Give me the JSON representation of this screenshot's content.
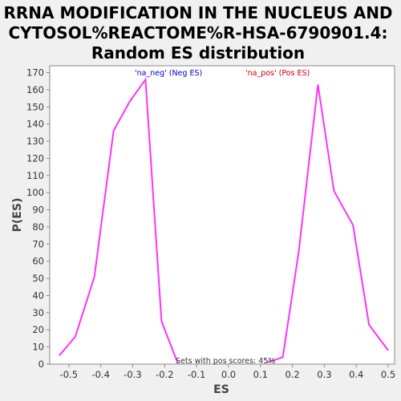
{
  "chart_data": {
    "type": "line",
    "title_lines": [
      "RRNA MODIFICATION IN THE NUCLEUS AND",
      "CYTOSOL%REACTOME%R-HSA-6790901.4:",
      "Random ES distribution"
    ],
    "xlabel": "ES",
    "ylabel": "P(ES)",
    "xlim": [
      -0.56,
      0.52
    ],
    "ylim": [
      0,
      174
    ],
    "xticks": [
      -0.5,
      -0.4,
      -0.3,
      -0.2,
      -0.1,
      0.0,
      0.1,
      0.2,
      0.3,
      0.4,
      0.5
    ],
    "xtick_labels": [
      "-0.5",
      "-0.4",
      "-0.3",
      "-0.2",
      "-0.1",
      "0.0",
      "0.1",
      "0.2",
      "0.3",
      "0.4",
      "0.5"
    ],
    "yticks": [
      0,
      10,
      20,
      30,
      40,
      50,
      60,
      70,
      80,
      90,
      100,
      110,
      120,
      130,
      140,
      150,
      160,
      170
    ],
    "grid": false,
    "series": [
      {
        "name": "'na_neg' (Neg ES)",
        "color": "#ff33ff",
        "x": [
          -0.53,
          -0.48,
          -0.42,
          -0.36,
          -0.31,
          -0.26,
          -0.21,
          -0.16
        ],
        "y": [
          5,
          16,
          51,
          136,
          153,
          166,
          25,
          1
        ]
      },
      {
        "name": "'na_pos' (Pos ES)",
        "color": "#ff33ff",
        "x": [
          0.12,
          0.17,
          0.22,
          0.28,
          0.33,
          0.39,
          0.44,
          0.5
        ],
        "y": [
          1,
          4,
          66,
          163,
          101,
          81,
          23,
          8
        ]
      }
    ],
    "annotations": {
      "neg_label": "'na_neg' (Neg ES)",
      "neg_color": "#0000cc",
      "pos_label": "'na_pos' (Pos ES)",
      "pos_color": "#cc0000",
      "pos_scores": "Sets with pos scores: 45%"
    }
  }
}
